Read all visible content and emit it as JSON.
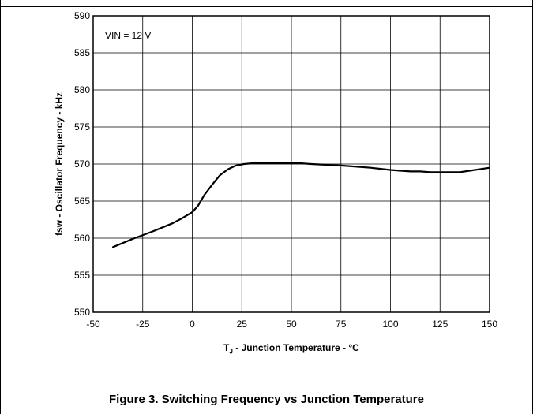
{
  "chart_data": {
    "type": "line",
    "title": "",
    "xlabel_main": "T",
    "xlabel_sub": "J",
    "xlabel_rest": " - Junction Temperature - °C",
    "ylabel": "fsw - Oscillator Frequency - kHz",
    "annotation": "VIN = 12 V",
    "xlim": [
      -50,
      150
    ],
    "ylim": [
      550,
      590
    ],
    "x_ticks": [
      "-50",
      "-25",
      "0",
      "25",
      "50",
      "75",
      "100",
      "125",
      "150"
    ],
    "y_ticks": [
      "590",
      "585",
      "580",
      "575",
      "570",
      "565",
      "560",
      "555",
      "550"
    ],
    "grid": true,
    "series": [
      {
        "x": [
          -40,
          -30,
          -20,
          -10,
          -5,
          0,
          3,
          6,
          10,
          14,
          18,
          22,
          26,
          30,
          40,
          50,
          55,
          60,
          75,
          90,
          100,
          110,
          115,
          120,
          125,
          130,
          135,
          140,
          150
        ],
        "y": [
          558.8,
          559.9,
          560.9,
          562.0,
          562.7,
          563.5,
          564.4,
          565.8,
          567.2,
          568.5,
          569.3,
          569.8,
          570.0,
          570.1,
          570.1,
          570.1,
          570.1,
          570.0,
          569.8,
          569.5,
          569.2,
          569.0,
          569.0,
          568.9,
          568.9,
          568.9,
          568.9,
          569.1,
          569.5
        ]
      }
    ]
  },
  "caption": "Figure 3. Switching Frequency vs Junction Temperature"
}
